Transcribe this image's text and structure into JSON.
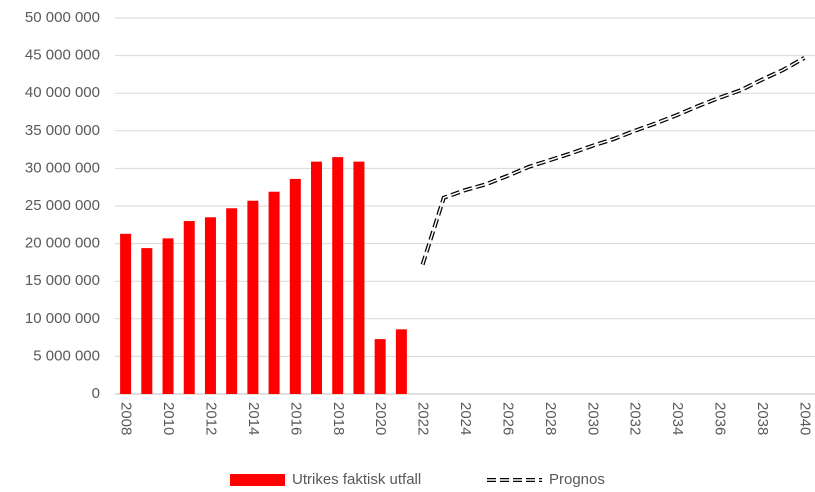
{
  "chart_data": {
    "type": "bar",
    "categories": [
      "2008",
      null,
      "2010",
      null,
      "2012",
      null,
      "2014",
      null,
      "2016",
      null,
      "2018",
      null,
      "2020",
      null,
      "2022",
      null,
      "2024",
      null,
      "2026",
      null,
      "2028",
      null,
      "2030",
      null,
      "2032",
      null,
      "2034",
      null,
      "2036",
      null,
      "2038",
      null,
      "2040"
    ],
    "series": [
      {
        "name": "Utrikes faktisk utfall",
        "type": "bar",
        "color": "#ff0000",
        "values": [
          21300000,
          19400000,
          20700000,
          23000000,
          23500000,
          24700000,
          25700000,
          26900000,
          28600000,
          30900000,
          31500000,
          30900000,
          7300000,
          8600000,
          null,
          null,
          null,
          null,
          null,
          null,
          null,
          null,
          null,
          null,
          null,
          null,
          null,
          null,
          null,
          null,
          null,
          null,
          null
        ]
      },
      {
        "name": "Prognos",
        "type": "line",
        "color": "#000000",
        "values": [
          null,
          null,
          null,
          null,
          null,
          null,
          null,
          null,
          null,
          null,
          null,
          null,
          null,
          null,
          17200000,
          26100000,
          27100000,
          27900000,
          29000000,
          30200000,
          31100000,
          32000000,
          33000000,
          33900000,
          35000000,
          36000000,
          37100000,
          38300000,
          39400000,
          40400000,
          41800000,
          43100000,
          44700000
        ]
      }
    ],
    "ylim": [
      0,
      50000000
    ],
    "yticks": [
      0,
      {
        "value": 5000000,
        "label": "5 000 000"
      },
      {
        "value": 10000000,
        "label": "10 000 000"
      },
      {
        "value": 15000000,
        "label": "15 000 000"
      },
      {
        "value": 20000000,
        "label": "20 000 000"
      },
      {
        "value": 25000000,
        "label": "25 000 000"
      },
      {
        "value": 30000000,
        "label": "30 000 000"
      },
      {
        "value": 35000000,
        "label": "35 000 000"
      },
      {
        "value": 40000000,
        "label": "40 000 000"
      },
      {
        "value": 45000000,
        "label": "45 000 000"
      },
      {
        "value": 50000000,
        "label": "50 000 000"
      }
    ],
    "grid": true,
    "legend": "bottom"
  }
}
